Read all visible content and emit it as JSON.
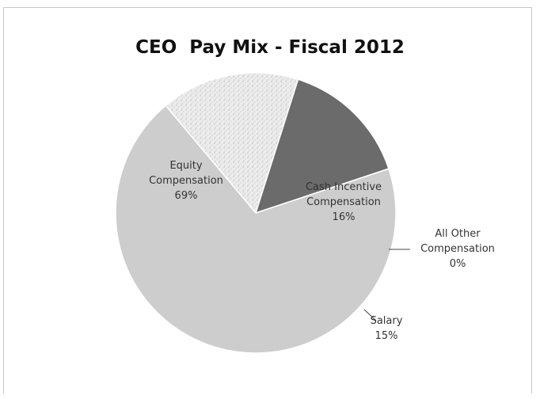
{
  "chart_data": {
    "type": "pie",
    "title": "CEO  Pay Mix - Fiscal 2012",
    "slices": [
      {
        "name": "Cash Incentive Compensation",
        "percent": 16,
        "label_lines": [
          "Cash Incentive",
          "Compensation",
          "16%"
        ],
        "color": "#e9e9e9",
        "pattern": "speckle"
      },
      {
        "name": "All Other Compensation",
        "percent": 0,
        "label_lines": [
          "All Other",
          "Compensation",
          "0%"
        ],
        "color": "#cfcfcf",
        "pattern": "none"
      },
      {
        "name": "Salary",
        "percent": 15,
        "label_lines": [
          "Salary",
          "15%"
        ],
        "color": "#6b6b6b",
        "pattern": "none"
      },
      {
        "name": "Equity Compensation",
        "percent": 69,
        "label_lines": [
          "Equity",
          "Compensation",
          "69%"
        ],
        "color": "#cdcdcd",
        "pattern": "none"
      }
    ],
    "legend": "none"
  }
}
